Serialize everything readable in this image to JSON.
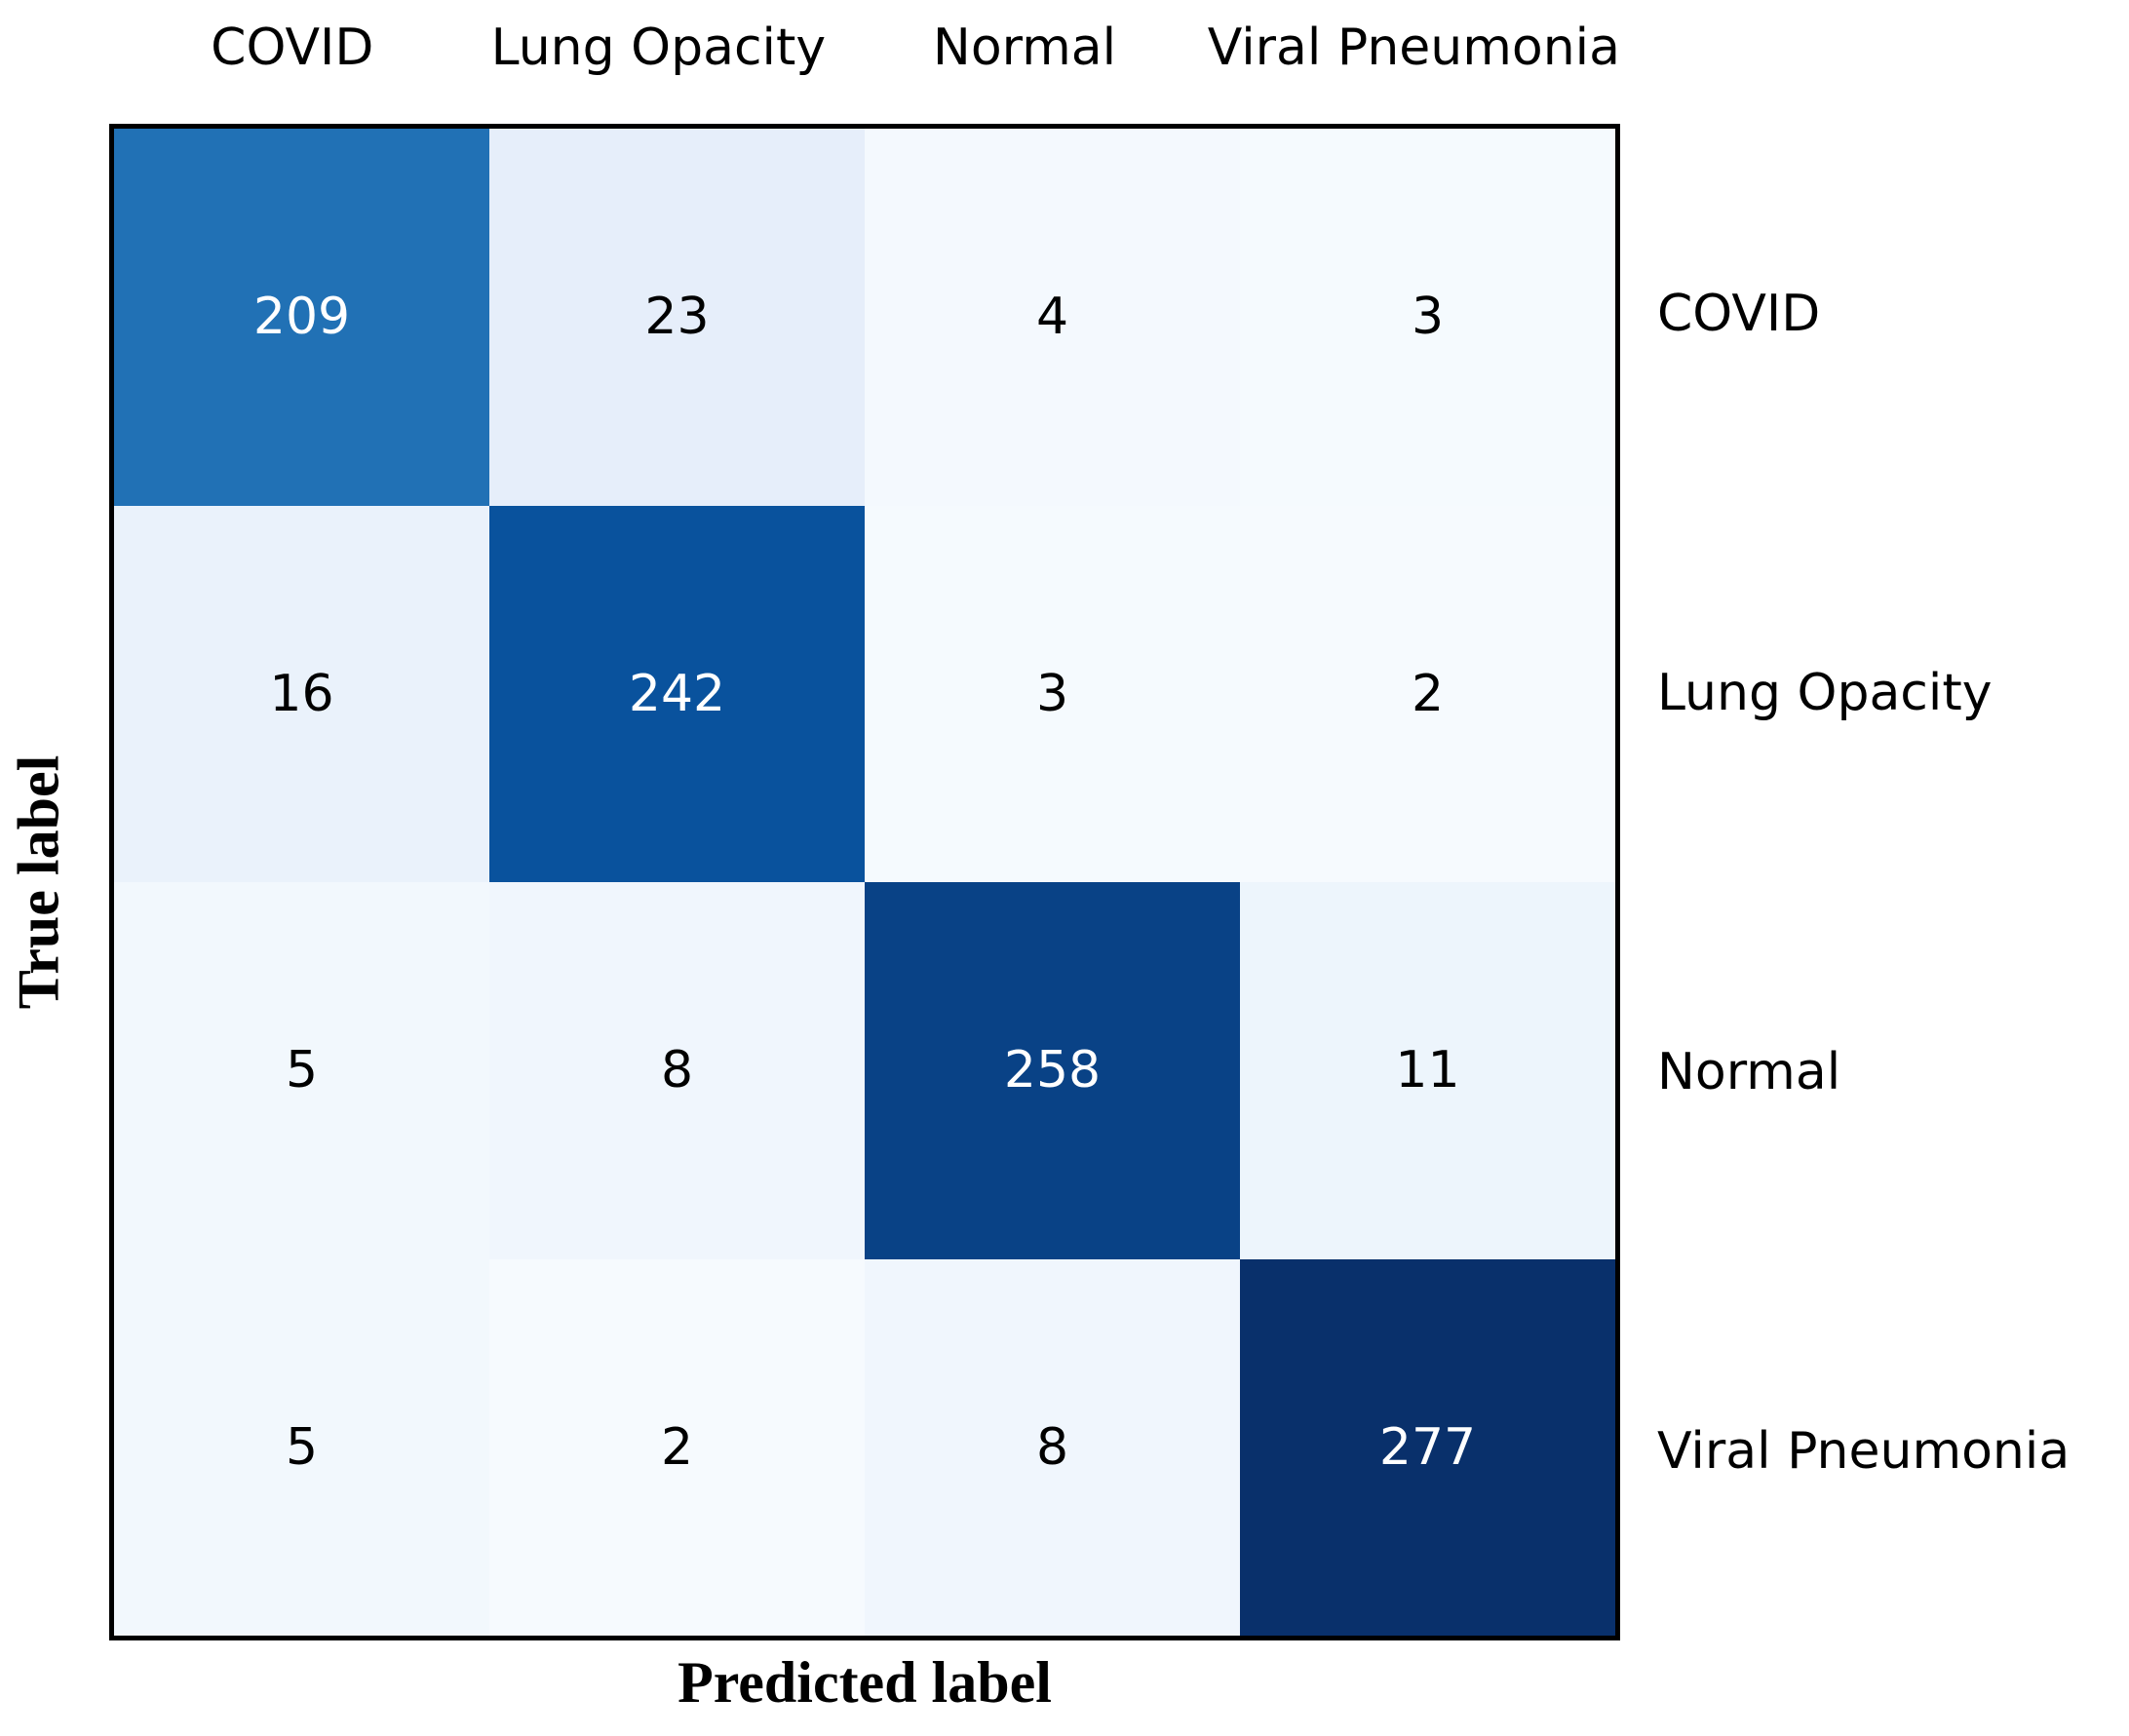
{
  "chart_data": {
    "type": "heatmap",
    "subtype": "confusion-matrix",
    "title": "",
    "xlabel": "Predicted label",
    "ylabel": "True label",
    "categories": [
      "COVID",
      "Lung Opacity",
      "Normal",
      "Viral Pneumonia"
    ],
    "x_tick_labels": [
      "COVID",
      "Lung Opacity",
      "Normal",
      "Viral Pneumonia"
    ],
    "y_tick_labels": [
      "COVID",
      "Lung Opacity",
      "Normal",
      "Viral Pneumonia"
    ],
    "matrix": [
      [
        209,
        23,
        4,
        3
      ],
      [
        16,
        242,
        3,
        2
      ],
      [
        5,
        8,
        258,
        11
      ],
      [
        5,
        2,
        8,
        277
      ]
    ],
    "colormap": "Blues",
    "vmin": 0,
    "vmax": 277,
    "legend": "none",
    "grid": false,
    "colors": {
      "background": "#ffffff",
      "border": "#000000",
      "diagonal_max": "#09306b",
      "diagonal_min": "#2171b5"
    },
    "cell_colors": [
      [
        "#2171b5",
        "#e6eefa",
        "#f4f9fe",
        "#f5fafe"
      ],
      [
        "#eaf2fb",
        "#09529d",
        "#f5fafe",
        "#f6fafe"
      ],
      [
        "#f2f8fd",
        "#f0f6fd",
        "#094286",
        "#edf5fc"
      ],
      [
        "#f2f8fd",
        "#f6fafe",
        "#f0f6fd",
        "#09306b"
      ]
    ],
    "cell_text_colors": [
      [
        "#ffffff",
        "#000000",
        "#000000",
        "#000000"
      ],
      [
        "#000000",
        "#ffffff",
        "#000000",
        "#000000"
      ],
      [
        "#000000",
        "#000000",
        "#ffffff",
        "#000000"
      ],
      [
        "#000000",
        "#000000",
        "#000000",
        "#ffffff"
      ]
    ]
  }
}
